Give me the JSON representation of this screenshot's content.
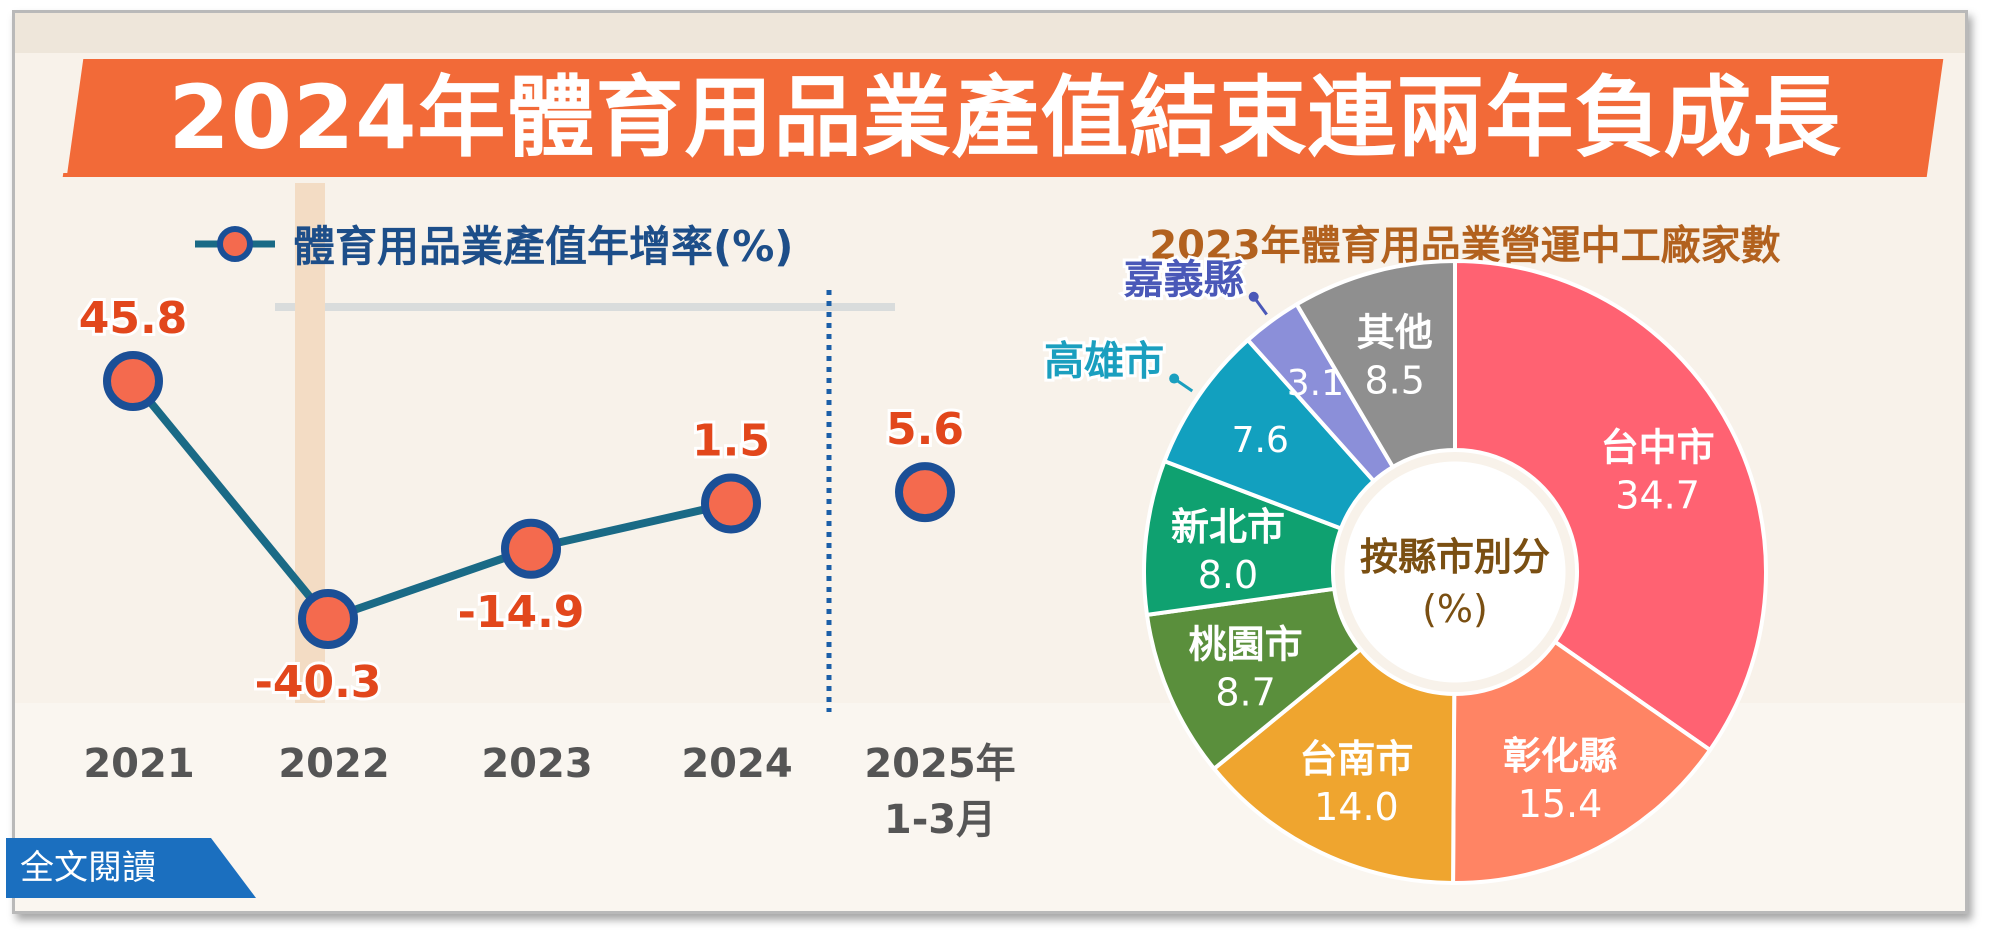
{
  "title": "2024年體育用品業產值結束連兩年負成長",
  "read_more_label": "全文閱讀",
  "colors": {
    "banner": "#f26a38",
    "line": "#1a6a86",
    "point_fill": "#f46a4e",
    "point_ring": "#1b4f96",
    "value_label": "#e2471c",
    "axis_label": "#555555"
  },
  "chart_data": [
    {
      "type": "line",
      "legend": "體育用品業產值年增率(%)",
      "ylabel": "%",
      "categories": [
        "2021",
        "2022",
        "2023",
        "2024",
        "2025年 1-3月"
      ],
      "category_lines": [
        [
          "2021"
        ],
        [
          "2022"
        ],
        [
          "2023"
        ],
        [
          "2024"
        ],
        [
          "2025年",
          "1-3月"
        ]
      ],
      "values": [
        45.8,
        -40.3,
        -14.9,
        1.5,
        5.6
      ],
      "value_labels": [
        "45.8",
        "-40.3",
        "-14.9",
        "1.5",
        "5.6"
      ],
      "connected": [
        true,
        true,
        true,
        true,
        false
      ],
      "note": ""
    },
    {
      "type": "pie",
      "title": "2023年體育用品業營運中工廠家數",
      "center_label": [
        "按縣市別分",
        "(%)"
      ],
      "slices": [
        {
          "label": "台中市",
          "value": 34.7,
          "value_label": "34.7",
          "color": "#ff6272"
        },
        {
          "label": "彰化縣",
          "value": 15.4,
          "value_label": "15.4",
          "color": "#ff8464"
        },
        {
          "label": "台南市",
          "value": 14.0,
          "value_label": "14.0",
          "color": "#efa52f"
        },
        {
          "label": "桃園市",
          "value": 8.7,
          "value_label": "8.7",
          "color": "#5a8f3c"
        },
        {
          "label": "新北市",
          "value": 8.0,
          "value_label": "8.0",
          "color": "#0fa170"
        },
        {
          "label": "高雄市",
          "value": 7.6,
          "value_label": "7.6",
          "color": "#12a0bf",
          "outside_label_color": "#1a9fbf"
        },
        {
          "label": "嘉義縣",
          "value": 3.1,
          "value_label": "3.1",
          "color": "#8b8fd9",
          "outside_label_color": "#4a58b8"
        },
        {
          "label": "其他",
          "value": 8.5,
          "value_label": "8.5",
          "color": "#8f8f8f"
        }
      ]
    }
  ]
}
